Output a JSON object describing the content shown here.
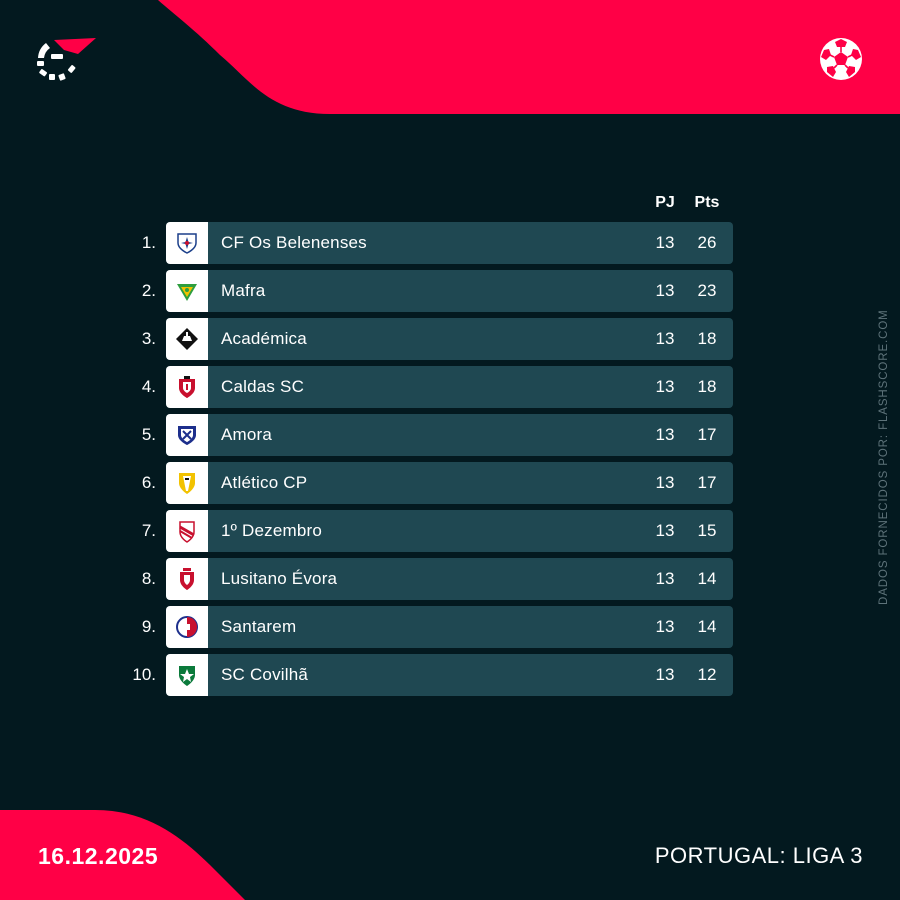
{
  "brand": {
    "accent": "#ff0046",
    "background": "#03191f",
    "row_bg": "#1f4852"
  },
  "header": {
    "logo_icon": "flashscore-logo-icon",
    "sport_icon": "football-icon"
  },
  "columns": {
    "played": "PJ",
    "points": "Pts"
  },
  "standings": [
    {
      "rank": "1.",
      "team": "CF Os Belenenses",
      "played": "13",
      "points": "26"
    },
    {
      "rank": "2.",
      "team": "Mafra",
      "played": "13",
      "points": "23"
    },
    {
      "rank": "3.",
      "team": "Académica",
      "played": "13",
      "points": "18"
    },
    {
      "rank": "4.",
      "team": "Caldas SC",
      "played": "13",
      "points": "18"
    },
    {
      "rank": "5.",
      "team": "Amora",
      "played": "13",
      "points": "17"
    },
    {
      "rank": "6.",
      "team": "Atlético CP",
      "played": "13",
      "points": "17"
    },
    {
      "rank": "7.",
      "team": "1º Dezembro",
      "played": "13",
      "points": "15"
    },
    {
      "rank": "8.",
      "team": "Lusitano Évora",
      "played": "13",
      "points": "14"
    },
    {
      "rank": "9.",
      "team": "Santarem",
      "played": "13",
      "points": "14"
    },
    {
      "rank": "10.",
      "team": "SC Covilhã",
      "played": "13",
      "points": "12"
    }
  ],
  "footer": {
    "date": "16.12.2025",
    "league": "PORTUGAL: LIGA 3",
    "credit": "DADOS FORNECIDOS POR: FLASHSCORE.COM"
  }
}
